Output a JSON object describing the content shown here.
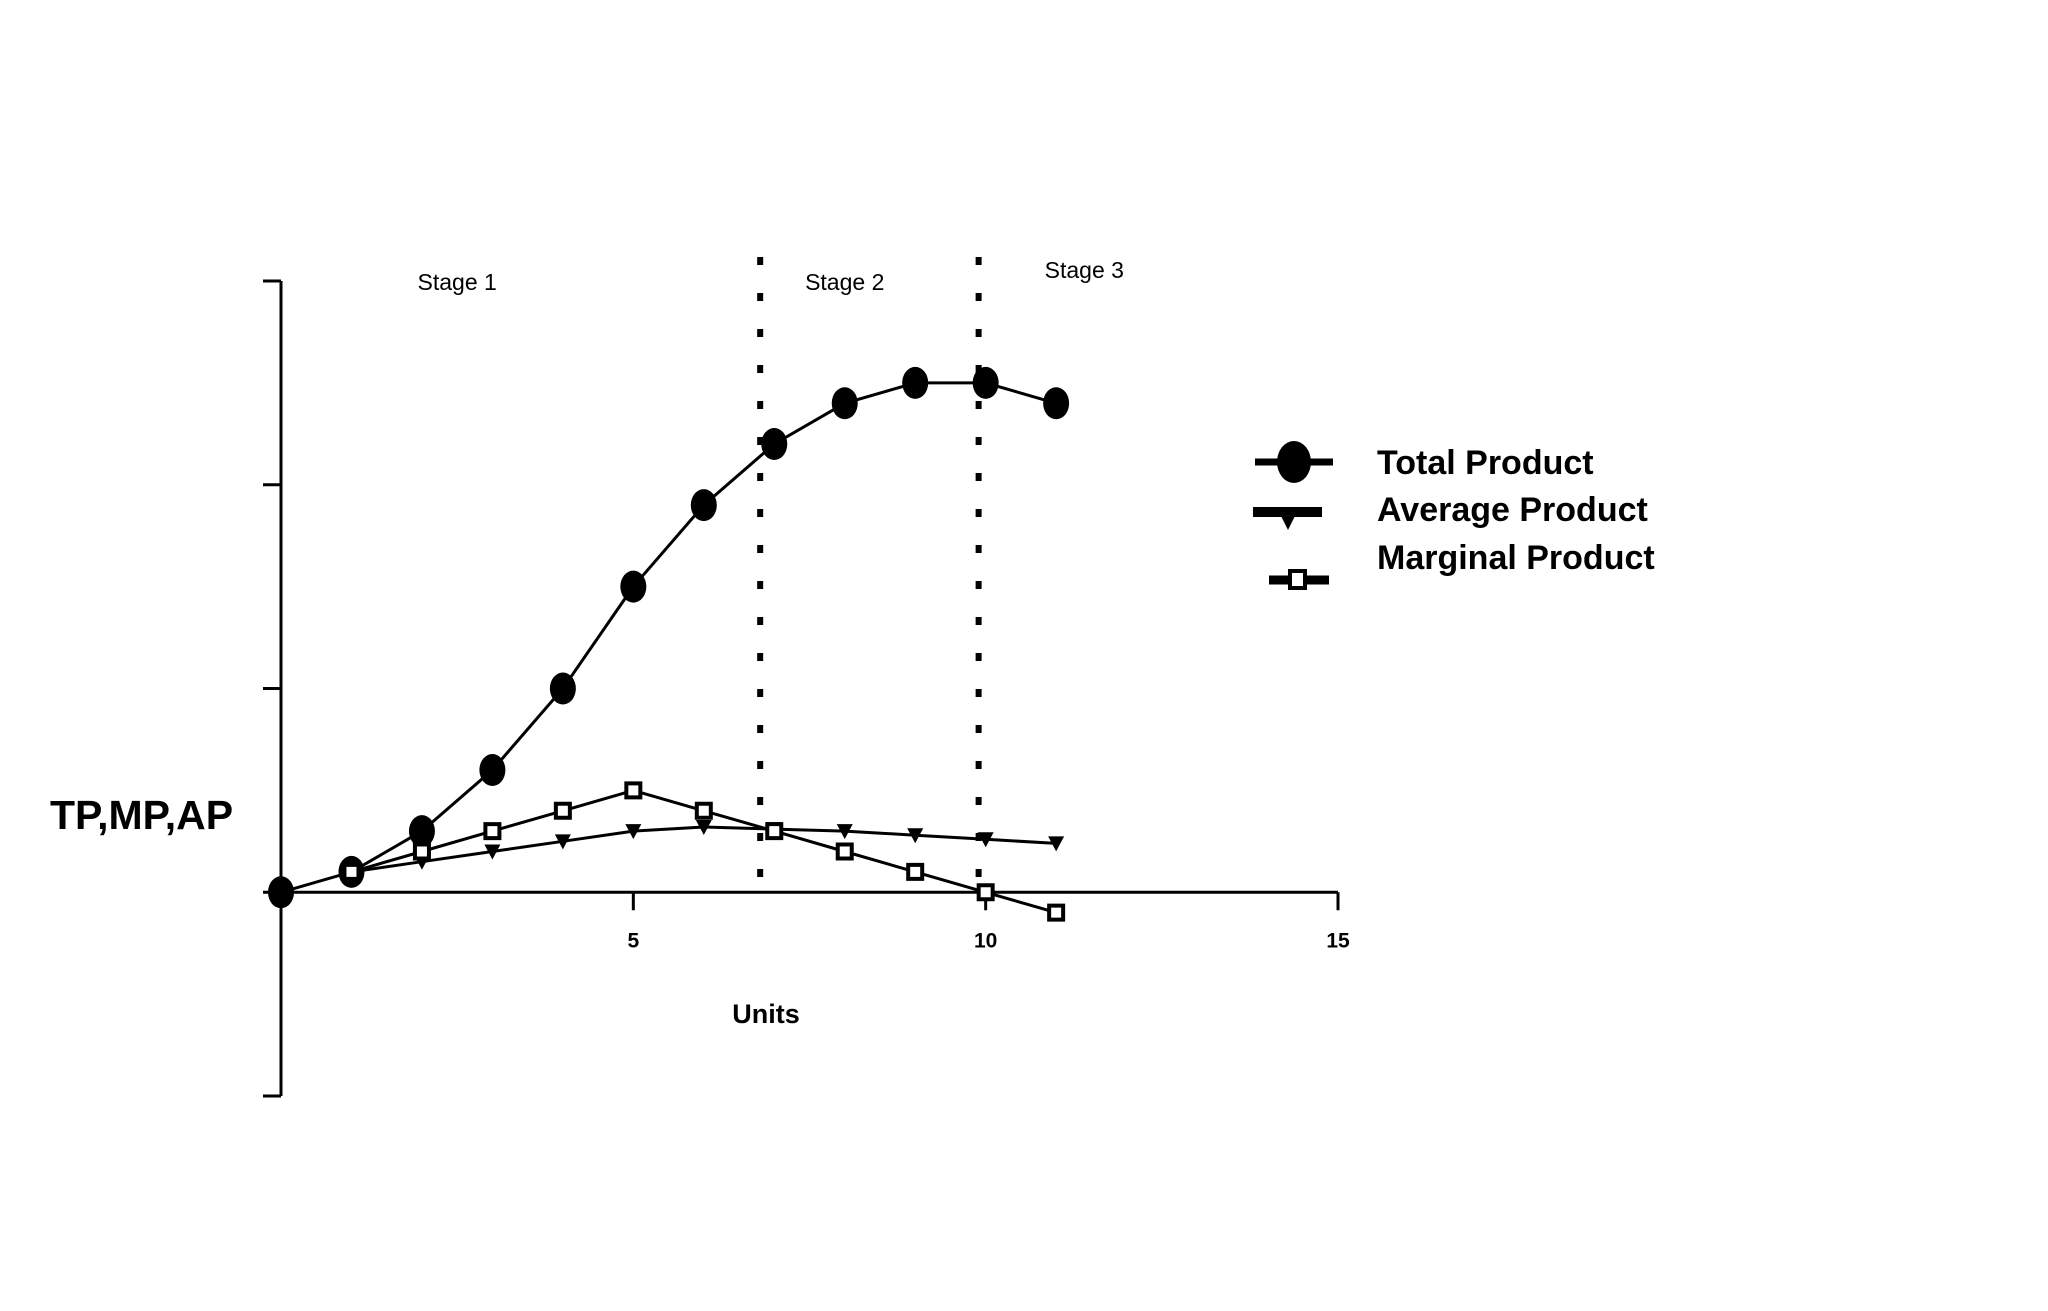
{
  "chart_data": {
    "type": "line",
    "title": "",
    "ylabel": "TP,MP,AP",
    "xlabel": "Units",
    "xlim": [
      0,
      15
    ],
    "ylim": [
      -10,
      30
    ],
    "x_ticks": [
      5,
      10,
      15
    ],
    "y_ticks": [
      -10,
      0,
      10,
      20,
      30
    ],
    "y_tick_labels_shown": false,
    "stage_dividers": [
      6.8,
      9.9
    ],
    "stages": [
      {
        "label": "Stage 1",
        "x": 2.5,
        "y": 30.0
      },
      {
        "label": "Stage 2",
        "x": 8.0,
        "y": 30.0
      },
      {
        "label": "Stage 3",
        "x": 11.4,
        "y": 30.6
      }
    ],
    "series": [
      {
        "name": "Total Product",
        "marker": "circle",
        "x": [
          0,
          1,
          2,
          3,
          4,
          5,
          6,
          7,
          8,
          9,
          10,
          11
        ],
        "values": [
          0,
          1,
          3,
          6,
          10,
          15,
          19,
          22,
          24,
          25,
          25,
          24
        ]
      },
      {
        "name": "Average Product",
        "marker": "triangle-down",
        "x": [
          1,
          2,
          3,
          4,
          5,
          6,
          7,
          8,
          9,
          10,
          11
        ],
        "values": [
          1,
          1.5,
          2,
          2.5,
          3,
          3.2,
          3.1,
          3.0,
          2.8,
          2.6,
          2.4
        ]
      },
      {
        "name": "Marginal Product",
        "marker": "square",
        "x": [
          1,
          2,
          3,
          4,
          5,
          6,
          7,
          8,
          9,
          10,
          11
        ],
        "values": [
          1,
          2,
          3,
          4,
          5,
          4,
          3,
          2,
          1,
          0,
          -1
        ]
      }
    ],
    "legend": {
      "placement": "right",
      "entries": [
        "Total Product",
        "Average Product",
        "Marginal Product"
      ]
    },
    "grid": false
  }
}
